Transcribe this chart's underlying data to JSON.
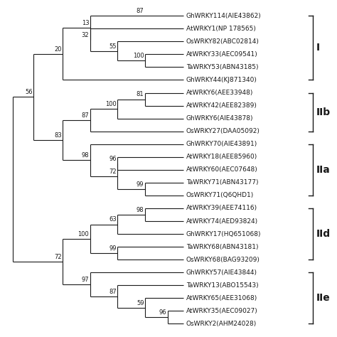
{
  "taxa": [
    "GhWRKY114(AIE43862)",
    "AtWRKY1(NP 178565)",
    "OsWRKY82(ABC02814)",
    "AtWRKY33(AEC09541)",
    "TaWRKY53(ABN43185)",
    "GhWRKY44(KJ871340)",
    "AtWRKY6(AEE33948)",
    "AtWRKY42(AEE82389)",
    "GhWRKY6(AIE43878)",
    "OsWRKY27(DAA05092)",
    "GhWRKY70(AIE43891)",
    "AtWRKY18(AEE85960)",
    "AtWRKY60(AEC07648)",
    "TaWRKY71(ABN43177)",
    "OsWRKY71(Q6QHD1)",
    "AtWRKY39(AEE74116)",
    "AtWRKY74(AED93824)",
    "GhWRKY17(HQ651068)",
    "TaWRKY68(ABN43181)",
    "OsWRKY68(BAG93209)",
    "GhWRKY57(AIE43844)",
    "TaWRKY13(ABO15543)",
    "AtWRKY65(AEE31068)",
    "AtWRKY35(AEC09027)",
    "OsWRKY2(AHM24028)"
  ],
  "group_labels": [
    "I",
    "IIb",
    "IIa",
    "IId",
    "IIe"
  ],
  "group_ranges": [
    [
      0,
      5
    ],
    [
      6,
      9
    ],
    [
      10,
      14
    ],
    [
      15,
      19
    ],
    [
      20,
      24
    ]
  ],
  "background": "#ffffff",
  "line_color": "#1a1a1a",
  "text_color": "#1a1a1a",
  "leaf_fontsize": 6.5,
  "bootstrap_fontsize": 6.0,
  "group_label_fontsize": 10,
  "lw": 0.8
}
